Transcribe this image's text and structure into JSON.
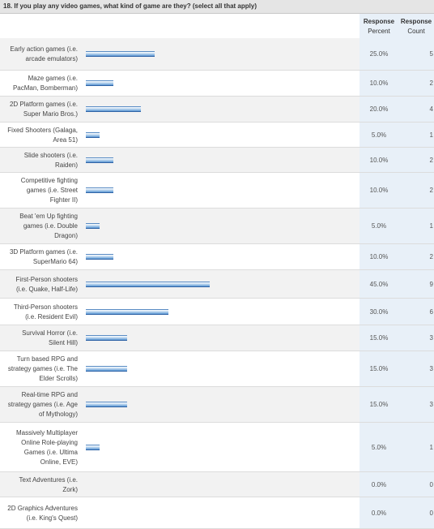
{
  "question": "18. If you play any video games, what kind of game are they? (select all that apply)",
  "headers": {
    "percent_line1": "Response",
    "percent_line2": "Percent",
    "count_line1": "Response",
    "count_line2": "Count"
  },
  "chart_data": {
    "type": "bar",
    "orientation": "horizontal",
    "title": "18. If you play any video games, what kind of game are they? (select all that apply)",
    "xlabel": "",
    "ylabel": "",
    "xlim": [
      0,
      100
    ],
    "grid": false,
    "categories": [
      "Early action games (i.e. arcade emulators)",
      "Maze games (i.e. PacMan, Bomberman)",
      "2D Platform games (i.e. Super Mario Bros.)",
      "Fixed Shooters (Galaga, Area 51)",
      "Slide shooters (i.e. Raiden)",
      "Competitive fighting games (i.e. Street Fighter II)",
      "Beat 'em Up fighting games (i.e. Double Dragon)",
      "3D Platform games (i.e. SuperMario 64)",
      "First-Person shooters (i.e. Quake, Half-Life)",
      "Third-Person shooters (i.e. Resident Evil)",
      "Survival Horror (i.e. Silent Hill)",
      "Turn based RPG and strategy games (i.e. The Elder Scrolls)",
      "Real-time RPG and strategy games (i.e. Age of Mythology)",
      "Massively Multiplayer Online Role-playing Games (i.e. Ultima Online, EVE)",
      "Text Adventures (i.e. Zork)",
      "2D Graphics Adventures (i.e. King's Quest)"
    ],
    "label_lines": [
      [
        "Early action games (i.e.",
        "arcade emulators)"
      ],
      [
        "Maze games (i.e.",
        "PacMan, Bomberman)"
      ],
      [
        "2D Platform games (i.e.",
        "Super Mario Bros.)"
      ],
      [
        "Fixed Shooters (Galaga,",
        "Area 51)"
      ],
      [
        "Slide shooters (i.e.",
        "Raiden)"
      ],
      [
        "Competitive fighting",
        "games (i.e. Street",
        "Fighter II)"
      ],
      [
        "Beat 'em Up fighting",
        "games (i.e. Double",
        "Dragon)"
      ],
      [
        "3D Platform games (i.e.",
        "SuperMario 64)"
      ],
      [
        "First-Person shooters",
        "(i.e. Quake, Half-Life)"
      ],
      [
        "Third-Person shooters",
        "(i.e. Resident Evil)"
      ],
      [
        "Survival Horror (i.e.",
        "Silent Hill)"
      ],
      [
        "Turn based RPG and",
        "strategy games (i.e. The",
        "Elder Scrolls)"
      ],
      [
        "Real-time RPG and",
        "strategy games (i.e. Age",
        "of Mythology)"
      ],
      [
        "Massively Multiplayer",
        "Online Role-playing",
        "Games (i.e. Ultima",
        "Online, EVE)"
      ],
      [
        "Text Adventures (i.e.",
        "Zork)"
      ],
      [
        "2D Graphics Adventures",
        "(i.e. King's Quest)"
      ]
    ],
    "percent_labels": [
      "25.0%",
      "10.0%",
      "20.0%",
      "5.0%",
      "10.0%",
      "10.0%",
      "5.0%",
      "10.0%",
      "45.0%",
      "30.0%",
      "15.0%",
      "15.0%",
      "15.0%",
      "5.0%",
      "0.0%",
      "0.0%"
    ],
    "values": [
      25,
      10,
      20,
      5,
      10,
      10,
      5,
      10,
      45,
      30,
      15,
      15,
      15,
      5,
      0,
      0
    ],
    "counts": [
      5,
      2,
      4,
      1,
      2,
      2,
      1,
      2,
      9,
      6,
      3,
      3,
      3,
      1,
      0,
      0
    ],
    "colors": {
      "bar_top": "#ffffff",
      "bar_mid": "#bcd6ef",
      "bar_bottom": "#5a96d2",
      "bar_border": "#2f63a6"
    }
  }
}
